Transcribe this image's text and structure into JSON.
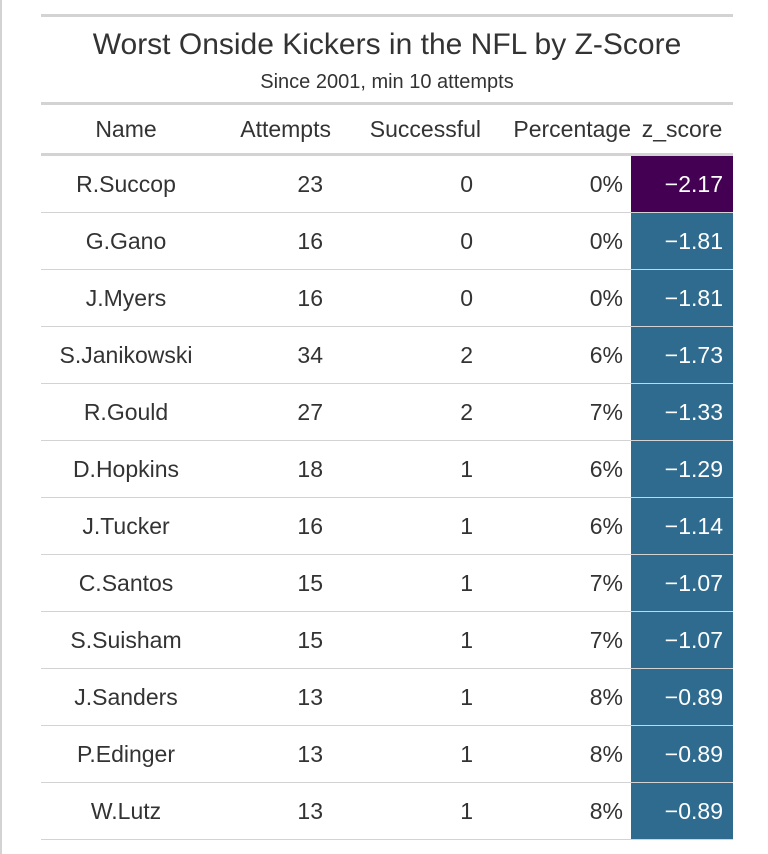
{
  "chart_data": {
    "type": "table",
    "title": "Worst Onside Kickers in the NFL by Z-Score",
    "subtitle": "Since 2001, min 10 attempts",
    "columns": [
      "Name",
      "Attempts",
      "Successful",
      "Percentage",
      "z_score"
    ],
    "rows": [
      {
        "name": "R.Succop",
        "attempts": "23",
        "successful": "0",
        "percentage": "0%",
        "z_score": "−2.17",
        "z_value": -2.17,
        "z_color": "#440154"
      },
      {
        "name": "G.Gano",
        "attempts": "16",
        "successful": "0",
        "percentage": "0%",
        "z_score": "−1.81",
        "z_value": -1.81,
        "z_color": "#2e6b8e"
      },
      {
        "name": "J.Myers",
        "attempts": "16",
        "successful": "0",
        "percentage": "0%",
        "z_score": "−1.81",
        "z_value": -1.81,
        "z_color": "#2e6b8e"
      },
      {
        "name": "S.Janikowski",
        "attempts": "34",
        "successful": "2",
        "percentage": "6%",
        "z_score": "−1.73",
        "z_value": -1.73,
        "z_color": "#2e6b8e"
      },
      {
        "name": "R.Gould",
        "attempts": "27",
        "successful": "2",
        "percentage": "7%",
        "z_score": "−1.33",
        "z_value": -1.33,
        "z_color": "#2e6b8e"
      },
      {
        "name": "D.Hopkins",
        "attempts": "18",
        "successful": "1",
        "percentage": "6%",
        "z_score": "−1.29",
        "z_value": -1.29,
        "z_color": "#2e6b8e"
      },
      {
        "name": "J.Tucker",
        "attempts": "16",
        "successful": "1",
        "percentage": "6%",
        "z_score": "−1.14",
        "z_value": -1.14,
        "z_color": "#2e6b8e"
      },
      {
        "name": "C.Santos",
        "attempts": "15",
        "successful": "1",
        "percentage": "7%",
        "z_score": "−1.07",
        "z_value": -1.07,
        "z_color": "#2e6b8e"
      },
      {
        "name": "S.Suisham",
        "attempts": "15",
        "successful": "1",
        "percentage": "7%",
        "z_score": "−1.07",
        "z_value": -1.07,
        "z_color": "#2e6b8e"
      },
      {
        "name": "J.Sanders",
        "attempts": "13",
        "successful": "1",
        "percentage": "8%",
        "z_score": "−0.89",
        "z_value": -0.89,
        "z_color": "#2e6b8e"
      },
      {
        "name": "P.Edinger",
        "attempts": "13",
        "successful": "1",
        "percentage": "8%",
        "z_score": "−0.89",
        "z_value": -0.89,
        "z_color": "#2e6b8e"
      },
      {
        "name": "W.Lutz",
        "attempts": "13",
        "successful": "1",
        "percentage": "8%",
        "z_score": "−0.89",
        "z_value": -0.89,
        "z_color": "#2e6b8e"
      }
    ]
  },
  "colors": {
    "rule": "#d3d3d3",
    "text": "#333333"
  }
}
